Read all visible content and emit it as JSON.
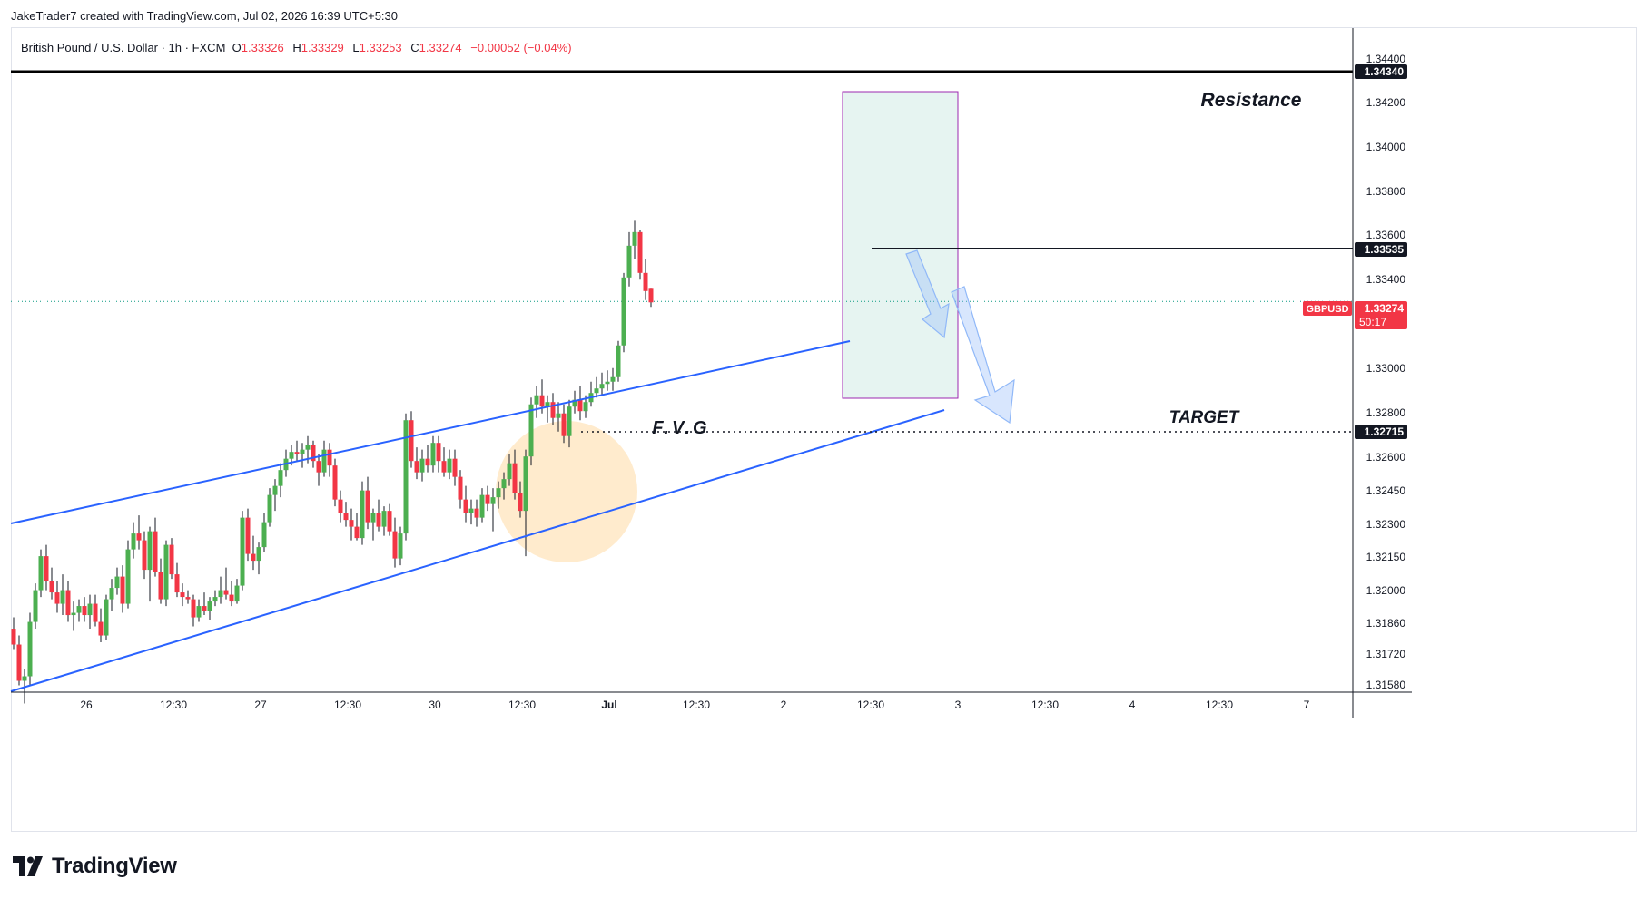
{
  "header": {
    "credit": "JakeTrader7 created with TradingView.com, Jul 02, 2026 16:39 UTC+5:30"
  },
  "legend": {
    "symbol": "British Pound / U.S. Dollar · 1h · FXCM",
    "open_label": "O",
    "open": "1.33326",
    "high_label": "H",
    "high": "1.33329",
    "low_label": "L",
    "low": "1.33253",
    "close_label": "C",
    "close": "1.33274",
    "change": "−0.00052 (−0.04%)"
  },
  "colors": {
    "up": "#089981",
    "up_body": "#4caf50",
    "down": "#f23645",
    "channel": "#2962ff",
    "resistance": "#000000",
    "zone_fill": "#e6f4f1",
    "zone_border": "#9c27b0",
    "fvg_highlight": "#ffe0b2",
    "arrow": "#90b8f8"
  },
  "chart_data": {
    "type": "candlestick",
    "symbol": "GBPUSD",
    "timeframe": "1h",
    "ylim": [
      1.3155,
      1.3448
    ],
    "y_ticks": [
      "1.31580",
      "1.31720",
      "1.31860",
      "1.32000",
      "1.32150",
      "1.32300",
      "1.32450",
      "1.32600",
      "1.32800",
      "1.33000",
      "1.33400",
      "1.33600",
      "1.33800",
      "1.34000",
      "1.34200",
      "1.34400"
    ],
    "x_ticks": [
      "26",
      "12:30",
      "27",
      "12:30",
      "30",
      "12:30",
      "Jul",
      "12:30",
      "2",
      "12:30",
      "3",
      "12:30",
      "4",
      "12:30",
      "7"
    ],
    "price_labels": {
      "resistance": "1.34340",
      "high_line": "1.33535",
      "last_symbol": "GBPUSD",
      "last_price": "1.33274",
      "countdown": "50:17",
      "target": "1.32715"
    },
    "annotations": {
      "resistance": "Resistance",
      "target": "TARGET",
      "fvg": "F.V.G"
    },
    "ohlc": [
      [
        1.3183,
        1.3188,
        1.3174,
        1.3176
      ],
      [
        1.3176,
        1.318,
        1.3158,
        1.316
      ],
      [
        1.316,
        1.3165,
        1.315,
        1.3162
      ],
      [
        1.3162,
        1.319,
        1.3158,
        1.3186
      ],
      [
        1.3186,
        1.3203,
        1.3183,
        1.32
      ],
      [
        1.32,
        1.3218,
        1.3197,
        1.3215
      ],
      [
        1.3215,
        1.322,
        1.32,
        1.3204
      ],
      [
        1.3204,
        1.321,
        1.3196,
        1.3199
      ],
      [
        1.3199,
        1.3204,
        1.319,
        1.3194
      ],
      [
        1.3194,
        1.3207,
        1.3189,
        1.32
      ],
      [
        1.32,
        1.3204,
        1.3186,
        1.3189
      ],
      [
        1.3189,
        1.3195,
        1.3182,
        1.319
      ],
      [
        1.319,
        1.3196,
        1.3186,
        1.3193
      ],
      [
        1.3193,
        1.3197,
        1.3186,
        1.3189
      ],
      [
        1.3189,
        1.3198,
        1.3183,
        1.3194
      ],
      [
        1.3194,
        1.3198,
        1.3184,
        1.3186
      ],
      [
        1.3186,
        1.3192,
        1.3177,
        1.318
      ],
      [
        1.318,
        1.3198,
        1.3178,
        1.3196
      ],
      [
        1.3196,
        1.3205,
        1.3191,
        1.3201
      ],
      [
        1.3201,
        1.321,
        1.3198,
        1.3206
      ],
      [
        1.3206,
        1.3211,
        1.319,
        1.3194
      ],
      [
        1.3194,
        1.3222,
        1.3192,
        1.3218
      ],
      [
        1.3218,
        1.323,
        1.3214,
        1.3225
      ],
      [
        1.3225,
        1.3233,
        1.3218,
        1.3222
      ],
      [
        1.3222,
        1.3226,
        1.3205,
        1.3209
      ],
      [
        1.3209,
        1.3228,
        1.3195,
        1.3226
      ],
      [
        1.3226,
        1.3232,
        1.3206,
        1.3208
      ],
      [
        1.3208,
        1.3214,
        1.3194,
        1.3196
      ],
      [
        1.3196,
        1.3222,
        1.3193,
        1.322
      ],
      [
        1.322,
        1.3223,
        1.3205,
        1.3207
      ],
      [
        1.3207,
        1.3212,
        1.3197,
        1.3199
      ],
      [
        1.3199,
        1.3203,
        1.3193,
        1.3197
      ],
      [
        1.3197,
        1.32,
        1.3194,
        1.3196
      ],
      [
        1.3196,
        1.3198,
        1.3184,
        1.3188
      ],
      [
        1.3188,
        1.3196,
        1.3186,
        1.3193
      ],
      [
        1.3193,
        1.3199,
        1.3189,
        1.3191
      ],
      [
        1.3191,
        1.3197,
        1.3187,
        1.3195
      ],
      [
        1.3195,
        1.32,
        1.3193,
        1.3197
      ],
      [
        1.3197,
        1.3206,
        1.3194,
        1.32
      ],
      [
        1.32,
        1.321,
        1.3196,
        1.3198
      ],
      [
        1.3198,
        1.3204,
        1.3193,
        1.3195
      ],
      [
        1.3195,
        1.3205,
        1.3194,
        1.3202
      ],
      [
        1.3202,
        1.3235,
        1.32,
        1.3232
      ],
      [
        1.3232,
        1.3236,
        1.3213,
        1.3216
      ],
      [
        1.3216,
        1.3224,
        1.3209,
        1.3213
      ],
      [
        1.3213,
        1.3221,
        1.3207,
        1.3219
      ],
      [
        1.3219,
        1.3234,
        1.3217,
        1.323
      ],
      [
        1.323,
        1.3245,
        1.3228,
        1.3242
      ],
      [
        1.3242,
        1.3249,
        1.3235,
        1.3246
      ],
      [
        1.3246,
        1.3256,
        1.3241,
        1.3253
      ],
      [
        1.3253,
        1.3262,
        1.325,
        1.3258
      ],
      [
        1.3258,
        1.3264,
        1.3255,
        1.3261
      ],
      [
        1.3261,
        1.3266,
        1.3257,
        1.326
      ],
      [
        1.326,
        1.3265,
        1.3254,
        1.3262
      ],
      [
        1.3262,
        1.3268,
        1.3256,
        1.3264
      ],
      [
        1.3264,
        1.3266,
        1.3254,
        1.3257
      ],
      [
        1.3257,
        1.326,
        1.3246,
        1.3252
      ],
      [
        1.3252,
        1.3266,
        1.325,
        1.3262
      ],
      [
        1.3262,
        1.3265,
        1.325,
        1.3255
      ],
      [
        1.3255,
        1.3258,
        1.3237,
        1.324
      ],
      [
        1.324,
        1.3244,
        1.323,
        1.3234
      ],
      [
        1.3234,
        1.3239,
        1.3228,
        1.3231
      ],
      [
        1.3231,
        1.3236,
        1.3222,
        1.3228
      ],
      [
        1.3228,
        1.3234,
        1.3222,
        1.3223
      ],
      [
        1.3223,
        1.3248,
        1.322,
        1.3244
      ],
      [
        1.3244,
        1.325,
        1.3227,
        1.323
      ],
      [
        1.323,
        1.3236,
        1.3222,
        1.3234
      ],
      [
        1.3234,
        1.324,
        1.3226,
        1.3228
      ],
      [
        1.3228,
        1.3237,
        1.3224,
        1.3235
      ],
      [
        1.3235,
        1.3238,
        1.3224,
        1.3226
      ],
      [
        1.3226,
        1.3232,
        1.321,
        1.3214
      ],
      [
        1.3214,
        1.3228,
        1.3211,
        1.3225
      ],
      [
        1.3225,
        1.3278,
        1.3222,
        1.3275
      ],
      [
        1.3275,
        1.3279,
        1.3254,
        1.3257
      ],
      [
        1.3257,
        1.3263,
        1.3249,
        1.3252
      ],
      [
        1.3252,
        1.3262,
        1.3248,
        1.3258
      ],
      [
        1.3258,
        1.3264,
        1.3252,
        1.3255
      ],
      [
        1.3255,
        1.3268,
        1.3252,
        1.3265
      ],
      [
        1.3265,
        1.3268,
        1.3252,
        1.3257
      ],
      [
        1.3257,
        1.3263,
        1.325,
        1.3252
      ],
      [
        1.3252,
        1.3262,
        1.3249,
        1.3258
      ],
      [
        1.3258,
        1.3262,
        1.3246,
        1.325
      ],
      [
        1.325,
        1.3253,
        1.3236,
        1.324
      ],
      [
        1.324,
        1.3246,
        1.323,
        1.3234
      ],
      [
        1.3234,
        1.324,
        1.3229,
        1.3236
      ],
      [
        1.3236,
        1.324,
        1.3228,
        1.3232
      ],
      [
        1.3232,
        1.3245,
        1.323,
        1.3242
      ],
      [
        1.3242,
        1.3246,
        1.3235,
        1.3238
      ],
      [
        1.3238,
        1.3245,
        1.3226,
        1.3241
      ],
      [
        1.3241,
        1.3248,
        1.3236,
        1.3245
      ],
      [
        1.3245,
        1.3252,
        1.324,
        1.3249
      ],
      [
        1.3249,
        1.326,
        1.3246,
        1.3256
      ],
      [
        1.3256,
        1.3262,
        1.324,
        1.3243
      ],
      [
        1.3243,
        1.3248,
        1.3232,
        1.3235
      ],
      [
        1.3235,
        1.3262,
        1.3215,
        1.3259
      ],
      [
        1.3259,
        1.3285,
        1.3255,
        1.3282
      ],
      [
        1.3282,
        1.329,
        1.3276,
        1.3286
      ],
      [
        1.3286,
        1.3293,
        1.3278,
        1.3281
      ],
      [
        1.3281,
        1.3286,
        1.3274,
        1.3283
      ],
      [
        1.3283,
        1.3287,
        1.3273,
        1.3276
      ],
      [
        1.3276,
        1.3283,
        1.327,
        1.3278
      ],
      [
        1.3278,
        1.3282,
        1.3265,
        1.3268
      ],
      [
        1.3268,
        1.3284,
        1.3263,
        1.3281
      ],
      [
        1.3281,
        1.3288,
        1.3278,
        1.3284
      ],
      [
        1.3284,
        1.329,
        1.3275,
        1.3279
      ],
      [
        1.3279,
        1.3286,
        1.3276,
        1.3283
      ],
      [
        1.3283,
        1.3292,
        1.3281,
        1.3287
      ],
      [
        1.3287,
        1.3294,
        1.3285,
        1.3289
      ],
      [
        1.3289,
        1.3296,
        1.3286,
        1.3291
      ],
      [
        1.3291,
        1.3297,
        1.3288,
        1.3292
      ],
      [
        1.3292,
        1.3298,
        1.3288,
        1.3294
      ],
      [
        1.3294,
        1.331,
        1.3292,
        1.3308
      ],
      [
        1.3308,
        1.334,
        1.3305,
        1.3338
      ],
      [
        1.3338,
        1.3358,
        1.3334,
        1.3352
      ],
      [
        1.3352,
        1.3363,
        1.3346,
        1.3358
      ],
      [
        1.3358,
        1.3359,
        1.3337,
        1.334
      ],
      [
        1.334,
        1.3346,
        1.3328,
        1.3332
      ],
      [
        1.3333,
        1.3333,
        1.3325,
        1.3327
      ]
    ]
  }
}
